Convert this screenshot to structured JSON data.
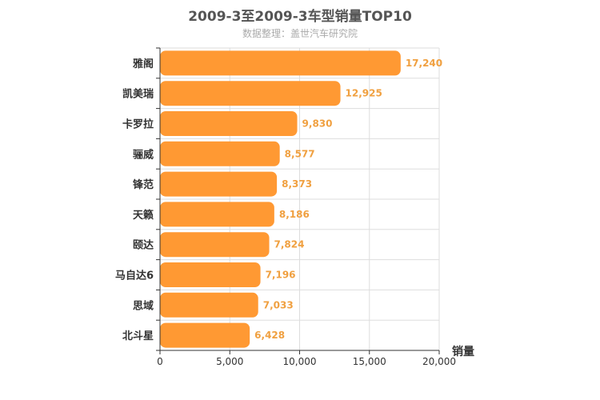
{
  "chart_data": {
    "type": "bar",
    "orientation": "horizontal",
    "title": "2009-3至2009-3车型销量TOP10",
    "subtitle": "数据整理：盖世汽车研究院",
    "xlabel": "销量",
    "ylabel": "",
    "xlim": [
      0,
      20000
    ],
    "ticks": [
      "0",
      "5,000",
      "10,000",
      "15,000",
      "20,000"
    ],
    "categories": [
      "雅阁",
      "凯美瑞",
      "卡罗拉",
      "骊威",
      "锋范",
      "天籁",
      "颐达",
      "马自达6",
      "思域",
      "北斗星"
    ],
    "values": [
      17240,
      12925,
      9830,
      8577,
      8373,
      8186,
      7824,
      7196,
      7033,
      6428
    ],
    "value_labels": [
      "17,240",
      "12,925",
      "9,830",
      "8,577",
      "8,373",
      "8,186",
      "7,824",
      "7,196",
      "7,033",
      "6,428"
    ],
    "grid": true,
    "bar_color": "#ff9933",
    "label_color": "#f0a040"
  }
}
